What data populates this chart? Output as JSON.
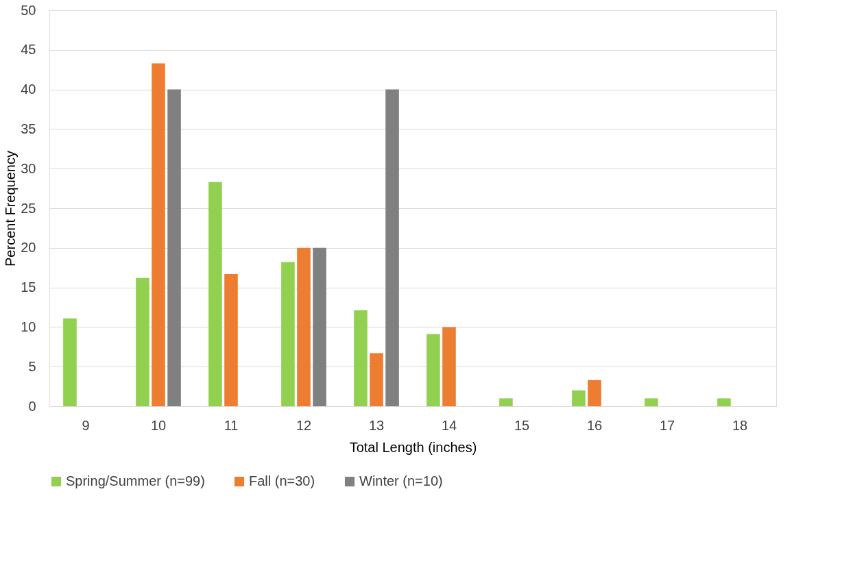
{
  "chart_data": {
    "type": "bar",
    "xlabel": "Total Length (inches)",
    "ylabel": "Percent Frequency",
    "categories": [
      "9",
      "10",
      "11",
      "12",
      "13",
      "14",
      "15",
      "16",
      "17",
      "18"
    ],
    "series": [
      {
        "name": "Spring/Summer (n=99)",
        "color": "#92d050",
        "values": [
          11.1,
          16.2,
          28.3,
          18.2,
          12.1,
          9.1,
          1.0,
          2.0,
          1.0,
          1.0
        ]
      },
      {
        "name": "Fall (n=30)",
        "color": "#ed7d31",
        "values": [
          0,
          43.3,
          16.7,
          20.0,
          6.7,
          10.0,
          0,
          3.3,
          0,
          0
        ]
      },
      {
        "name": "Winter (n=10)",
        "color": "#808080",
        "values": [
          0,
          40.0,
          0,
          20.0,
          40.0,
          0,
          0,
          0,
          0,
          0
        ]
      }
    ],
    "ylim": [
      0,
      50
    ],
    "yticks": [
      0,
      5,
      10,
      15,
      20,
      25,
      30,
      35,
      40,
      45,
      50
    ],
    "grid": "y",
    "legend": "bottom"
  }
}
